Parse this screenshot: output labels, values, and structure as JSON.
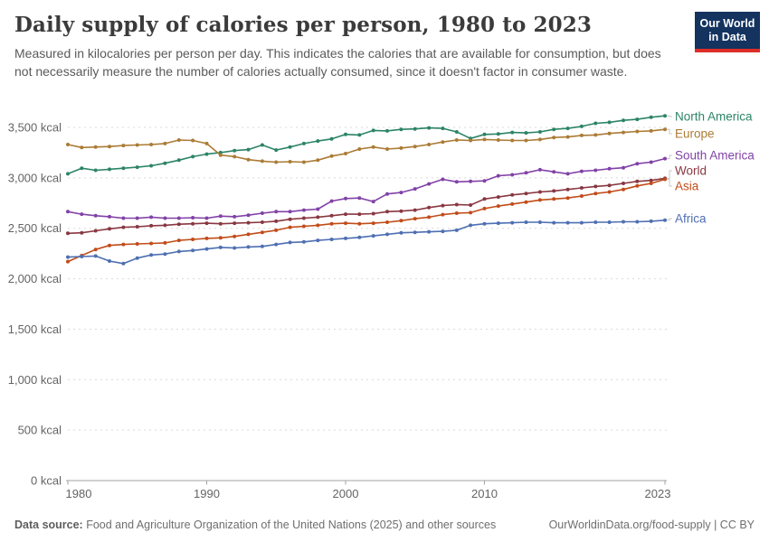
{
  "header": {
    "title": "Daily supply of calories per person, 1980 to 2023",
    "logo": {
      "line1": "Our World",
      "line2": "in Data"
    }
  },
  "subtitle": "Measured in kilocalories per person per day. This indicates the calories that are available for consumption, but does not necessarily measure the number of calories actually consumed, since it doesn't factor in consumer waste.",
  "theme": {
    "background": "#ffffff",
    "grid_color": "#d9d9d9",
    "axis_color": "#a3a3a3",
    "tick_text_color": "#646464",
    "connector_color": "#c8c8c8",
    "logo_navy": "#14335f",
    "logo_red": "#dc2e27"
  },
  "chart_data": {
    "type": "line",
    "title": "Daily supply of calories per person, 1980 to 2023",
    "units": "kcal",
    "ylim": [
      0,
      3650
    ],
    "grid": true,
    "legend_position": "right",
    "x": [
      1980,
      1981,
      1982,
      1983,
      1984,
      1985,
      1986,
      1987,
      1988,
      1989,
      1990,
      1991,
      1992,
      1993,
      1994,
      1995,
      1996,
      1997,
      1998,
      1999,
      2000,
      2001,
      2002,
      2003,
      2004,
      2005,
      2006,
      2007,
      2008,
      2009,
      2010,
      2011,
      2012,
      2013,
      2014,
      2015,
      2016,
      2017,
      2018,
      2019,
      2020,
      2021,
      2022,
      2023
    ],
    "yticks": [
      {
        "value": 0,
        "label": "0 kcal"
      },
      {
        "value": 500,
        "label": "500 kcal"
      },
      {
        "value": 1000,
        "label": "1,000 kcal"
      },
      {
        "value": 1500,
        "label": "1,500 kcal"
      },
      {
        "value": 2000,
        "label": "2,000 kcal"
      },
      {
        "value": 2500,
        "label": "2,500 kcal"
      },
      {
        "value": 3000,
        "label": "3,000 kcal"
      },
      {
        "value": 3500,
        "label": "3,500 kcal"
      }
    ],
    "xticks": [
      {
        "year": 1980,
        "label": "1980"
      },
      {
        "year": 1990,
        "label": "1990"
      },
      {
        "year": 2000,
        "label": "2000"
      },
      {
        "year": 2010,
        "label": "2010"
      },
      {
        "year": 2023,
        "label": "2023"
      }
    ],
    "series": [
      {
        "name": "North America",
        "color": "#2c8465",
        "legend_y": 11,
        "values": [
          3040,
          3095,
          3075,
          3085,
          3095,
          3105,
          3120,
          3145,
          3175,
          3210,
          3235,
          3250,
          3270,
          3280,
          3325,
          3275,
          3305,
          3340,
          3365,
          3385,
          3430,
          3425,
          3470,
          3465,
          3480,
          3485,
          3495,
          3490,
          3455,
          3390,
          3430,
          3435,
          3450,
          3445,
          3455,
          3480,
          3490,
          3510,
          3540,
          3550,
          3570,
          3580,
          3600,
          3615
        ]
      },
      {
        "name": "Europe",
        "color": "#ab7b35",
        "legend_y": 30,
        "values": [
          3330,
          3300,
          3305,
          3310,
          3320,
          3325,
          3330,
          3340,
          3375,
          3370,
          3340,
          3225,
          3210,
          3180,
          3165,
          3155,
          3160,
          3155,
          3175,
          3215,
          3240,
          3285,
          3305,
          3285,
          3295,
          3310,
          3330,
          3355,
          3375,
          3370,
          3380,
          3375,
          3370,
          3370,
          3380,
          3400,
          3405,
          3420,
          3425,
          3440,
          3450,
          3460,
          3465,
          3480
        ]
      },
      {
        "name": "South America",
        "color": "#8142a7",
        "legend_y": 54,
        "values": [
          2665,
          2640,
          2625,
          2615,
          2600,
          2600,
          2610,
          2600,
          2600,
          2605,
          2600,
          2620,
          2615,
          2630,
          2650,
          2665,
          2665,
          2680,
          2690,
          2770,
          2795,
          2800,
          2765,
          2840,
          2855,
          2890,
          2940,
          2985,
          2960,
          2965,
          2970,
          3020,
          3030,
          3050,
          3080,
          3060,
          3040,
          3065,
          3075,
          3090,
          3100,
          3140,
          3155,
          3190
        ]
      },
      {
        "name": "World",
        "color": "#893741",
        "legend_y": 71,
        "values": [
          2450,
          2455,
          2475,
          2495,
          2510,
          2515,
          2525,
          2530,
          2540,
          2545,
          2550,
          2545,
          2550,
          2555,
          2560,
          2570,
          2590,
          2600,
          2610,
          2625,
          2640,
          2640,
          2645,
          2665,
          2670,
          2680,
          2705,
          2725,
          2735,
          2730,
          2790,
          2810,
          2830,
          2845,
          2860,
          2870,
          2885,
          2900,
          2915,
          2925,
          2945,
          2965,
          2975,
          2995
        ]
      },
      {
        "name": "Asia",
        "color": "#c14c19",
        "legend_y": 88,
        "values": [
          2170,
          2230,
          2290,
          2330,
          2340,
          2345,
          2350,
          2355,
          2380,
          2390,
          2400,
          2405,
          2420,
          2440,
          2460,
          2480,
          2510,
          2520,
          2530,
          2545,
          2550,
          2545,
          2550,
          2560,
          2575,
          2595,
          2610,
          2635,
          2650,
          2655,
          2695,
          2720,
          2740,
          2760,
          2780,
          2790,
          2800,
          2820,
          2845,
          2860,
          2885,
          2920,
          2945,
          2985
        ]
      },
      {
        "name": "Africa",
        "color": "#4e6fb2",
        "legend_y": 124,
        "values": [
          2215,
          2220,
          2225,
          2175,
          2150,
          2205,
          2235,
          2245,
          2270,
          2280,
          2295,
          2310,
          2305,
          2315,
          2320,
          2340,
          2360,
          2365,
          2380,
          2390,
          2400,
          2410,
          2425,
          2440,
          2455,
          2460,
          2465,
          2470,
          2480,
          2530,
          2545,
          2550,
          2555,
          2560,
          2560,
          2555,
          2555,
          2555,
          2560,
          2560,
          2565,
          2565,
          2570,
          2580
        ]
      }
    ]
  },
  "footer": {
    "datasource_label": "Data source:",
    "datasource_text": " Food and Agriculture Organization of the United Nations (2025) and other sources",
    "link_text": "OurWorldinData.org/food-supply | CC BY"
  }
}
